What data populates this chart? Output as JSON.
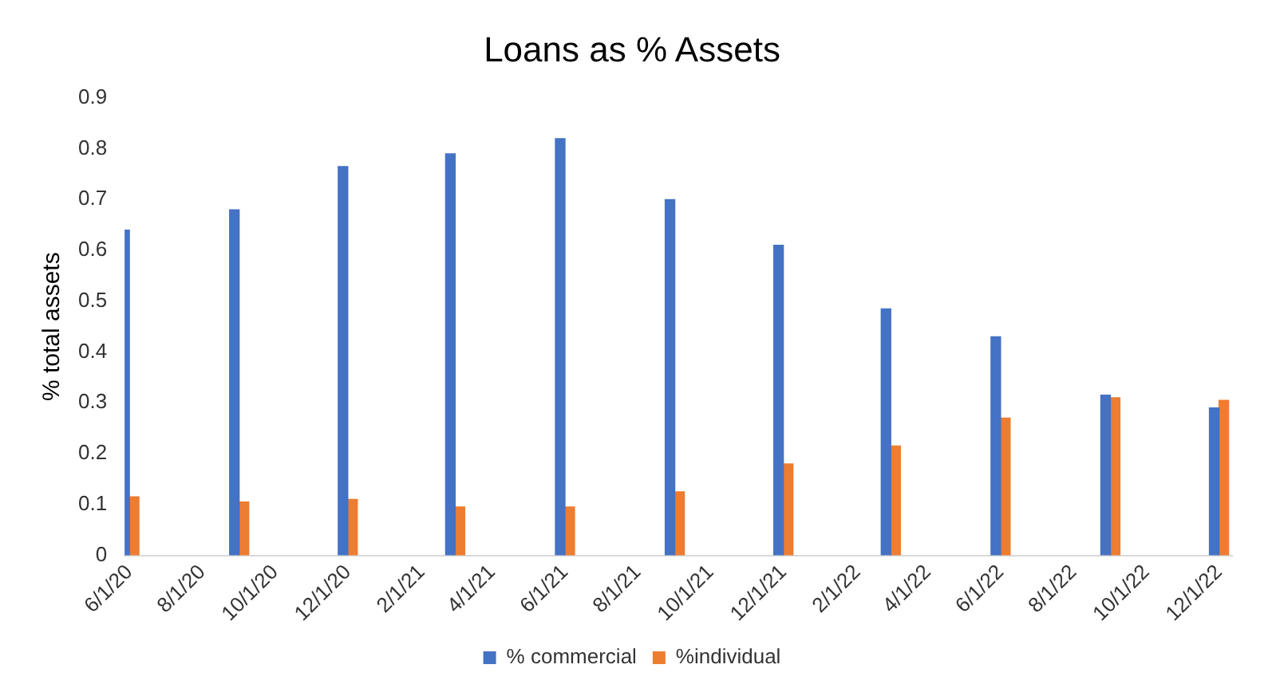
{
  "chart_data": {
    "type": "bar",
    "title": "Loans as % Assets",
    "ylabel": "% total assets",
    "x": [
      "2020-06-01",
      "2020-09-01",
      "2020-12-01",
      "2021-03-01",
      "2021-06-01",
      "2021-09-01",
      "2021-12-01",
      "2022-03-01",
      "2022-06-01",
      "2022-09-01",
      "2022-12-01"
    ],
    "series": [
      {
        "name": "% commercial",
        "color": "#4472c4",
        "values": [
          0.64,
          0.68,
          0.765,
          0.79,
          0.82,
          0.7,
          0.61,
          0.485,
          0.43,
          0.315,
          0.29
        ]
      },
      {
        "name": "%individual",
        "color": "#ed7d31",
        "values": [
          0.115,
          0.105,
          0.11,
          0.095,
          0.095,
          0.125,
          0.18,
          0.215,
          0.27,
          0.31,
          0.305
        ]
      }
    ],
    "xlim": [
      "2020-05-28",
      "2022-12-12"
    ],
    "xticks": [
      {
        "value": "2020-06-01",
        "label": "6/1/20"
      },
      {
        "value": "2020-08-01",
        "label": "8/1/20"
      },
      {
        "value": "2020-10-01",
        "label": "10/1/20"
      },
      {
        "value": "2020-12-01",
        "label": "12/1/20"
      },
      {
        "value": "2021-02-01",
        "label": "2/1/21"
      },
      {
        "value": "2021-04-01",
        "label": "4/1/21"
      },
      {
        "value": "2021-06-01",
        "label": "6/1/21"
      },
      {
        "value": "2021-08-01",
        "label": "8/1/21"
      },
      {
        "value": "2021-10-01",
        "label": "10/1/21"
      },
      {
        "value": "2021-12-01",
        "label": "12/1/21"
      },
      {
        "value": "2022-02-01",
        "label": "2/1/22"
      },
      {
        "value": "2022-04-01",
        "label": "4/1/22"
      },
      {
        "value": "2022-06-01",
        "label": "6/1/22"
      },
      {
        "value": "2022-08-01",
        "label": "8/1/22"
      },
      {
        "value": "2022-10-01",
        "label": "10/1/22"
      },
      {
        "value": "2022-12-01",
        "label": "12/1/22"
      }
    ],
    "ylim": [
      0,
      0.9
    ],
    "yticks": [
      0,
      0.1,
      0.2,
      0.3,
      0.4,
      0.5,
      0.6,
      0.7,
      0.8,
      0.9
    ],
    "grid": false,
    "legend": "bottom"
  }
}
